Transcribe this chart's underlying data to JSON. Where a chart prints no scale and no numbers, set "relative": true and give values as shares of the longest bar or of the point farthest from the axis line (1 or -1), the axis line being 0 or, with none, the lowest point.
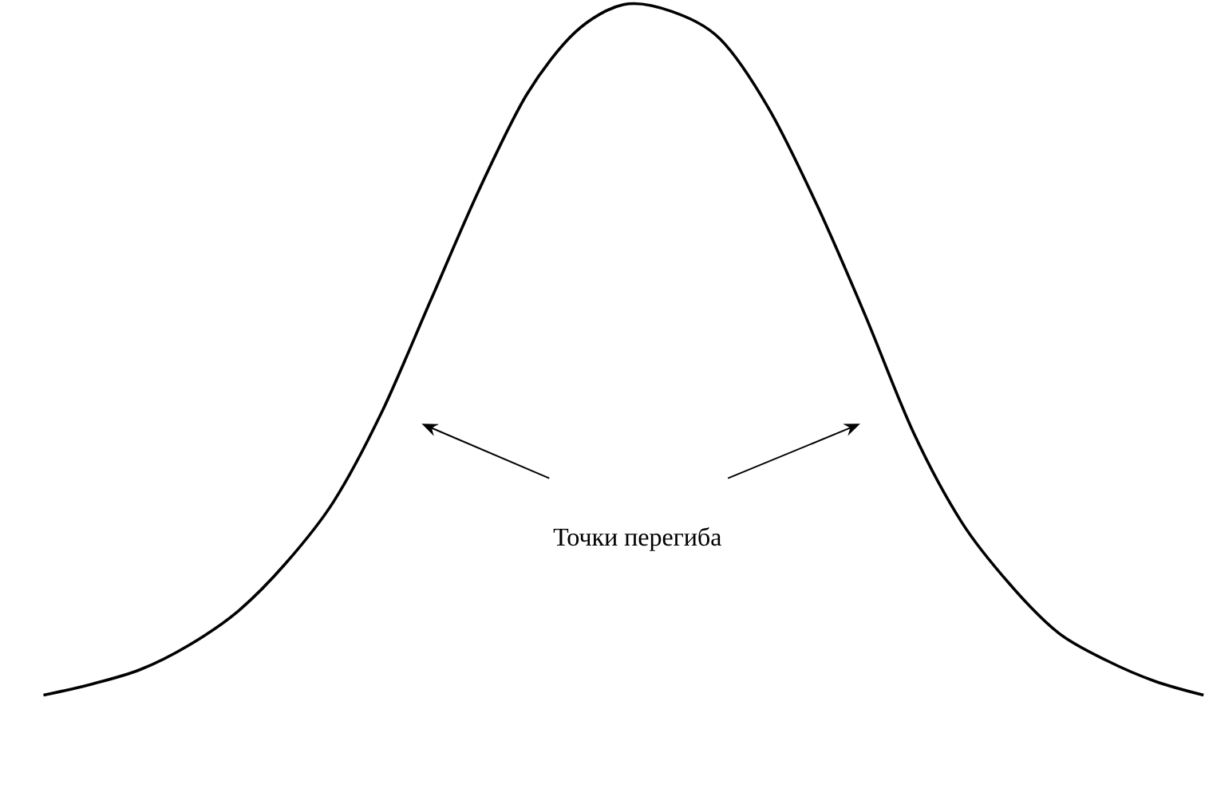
{
  "chart_data": {
    "type": "line",
    "relative": true,
    "categories": [
      null,
      null,
      null,
      null,
      null,
      null,
      null,
      null,
      null,
      null,
      null,
      null,
      null,
      null,
      null,
      null,
      null,
      null,
      null,
      null,
      null,
      null,
      null,
      null,
      null
    ],
    "series": [
      {
        "color": "#000000",
        "values": [
          0,
          0.016,
          0.037,
          0.072,
          0.12,
          0.19,
          0.28,
          0.41,
          0.57,
          0.73,
          0.87,
          0.96,
          1,
          0.99,
          0.95,
          0.85,
          0.71,
          0.55,
          0.38,
          0.25,
          0.16,
          0.09,
          0.05,
          0.02,
          0
        ]
      }
    ],
    "annotations": [
      "Точки   перегиба"
    ]
  }
}
